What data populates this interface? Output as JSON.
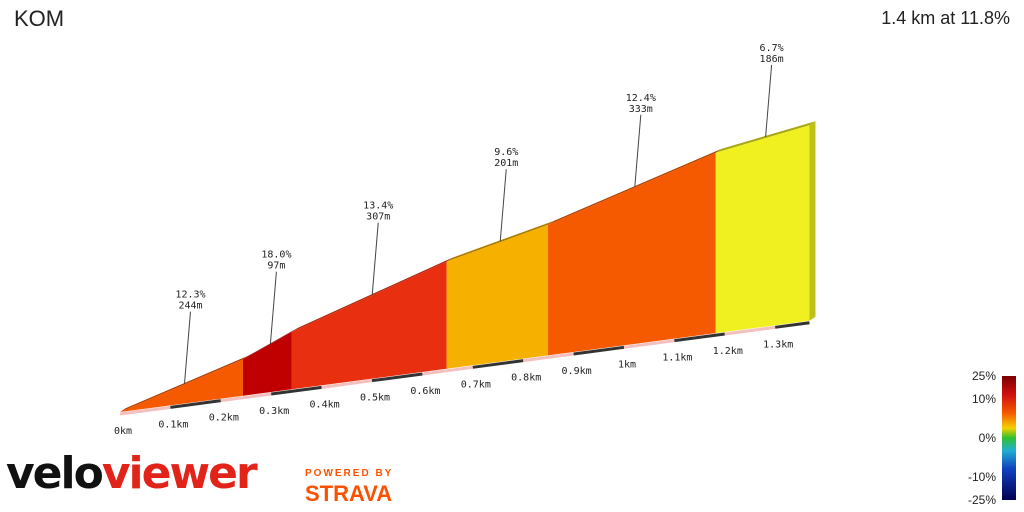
{
  "header": {
    "title": "KOM",
    "summary": "1.4 km at 11.8%"
  },
  "brand": {
    "logo_part1": "velo",
    "logo_part2": "viewer",
    "powered_by": "POWERED BY",
    "partner": "STRAVA"
  },
  "colors": {
    "very_steep": "#c00000",
    "steep": "#e83010",
    "hard": "#f55a00",
    "moderate": "#f5b000",
    "easy": "#f0f020"
  },
  "chart_data": {
    "type": "area",
    "title": "KOM",
    "distance_unit": "km",
    "distance_ticks": [
      "0km",
      "0.1km",
      "0.2km",
      "0.3km",
      "0.4km",
      "0.5km",
      "0.6km",
      "0.7km",
      "0.8km",
      "0.9km",
      "1km",
      "1.1km",
      "1.2km",
      "1.3km"
    ],
    "segments": [
      {
        "gradient_label": "12.3%",
        "length_label": "244m",
        "gradient": 12.3,
        "length_m": 244,
        "color": "#f55a00"
      },
      {
        "gradient_label": "18.0%",
        "length_label": "97m",
        "gradient": 18.0,
        "length_m": 97,
        "color": "#c00000"
      },
      {
        "gradient_label": "13.4%",
        "length_label": "307m",
        "gradient": 13.4,
        "length_m": 307,
        "color": "#e83010"
      },
      {
        "gradient_label": "9.6%",
        "length_label": "201m",
        "gradient": 9.6,
        "length_m": 201,
        "color": "#f5b000"
      },
      {
        "gradient_label": "12.4%",
        "length_label": "333m",
        "gradient": 12.4,
        "length_m": 333,
        "color": "#f55a00"
      },
      {
        "gradient_label": "6.7%",
        "length_label": "186m",
        "gradient": 6.7,
        "length_m": 186,
        "color": "#f0f020"
      }
    ],
    "gradient_scale": {
      "labels": [
        "25%",
        "10%",
        "0%",
        "-10%",
        "-25%"
      ],
      "values": [
        25,
        10,
        0,
        -10,
        -25
      ]
    }
  }
}
